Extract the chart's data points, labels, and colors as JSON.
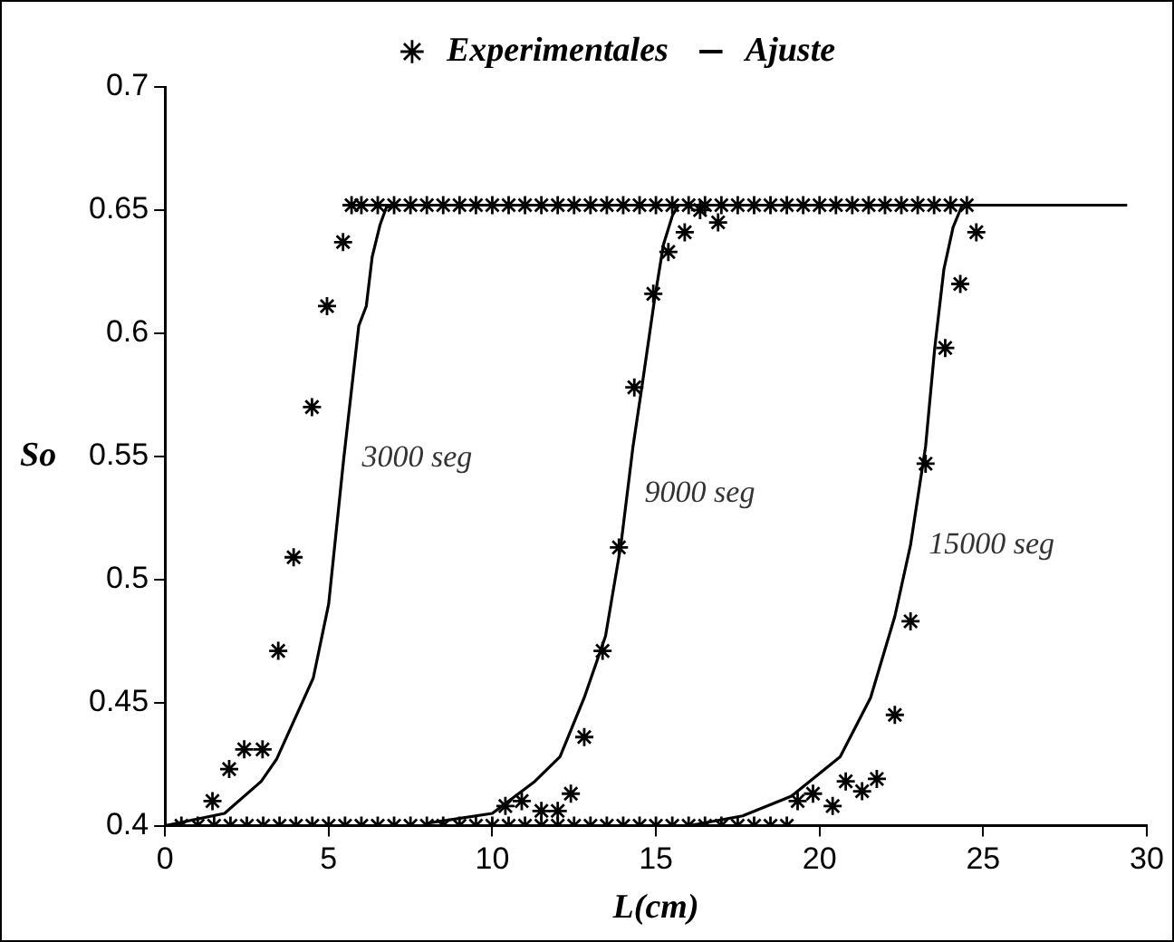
{
  "chart_data": {
    "type": "scatter",
    "xlabel": "L(cm)",
    "ylabel": "So",
    "xlim": [
      0,
      30
    ],
    "xticks": [
      0,
      5,
      10,
      15,
      20,
      25,
      30
    ],
    "ylim": [
      0.4,
      0.7
    ],
    "yticks": [
      0.4,
      0.45,
      0.5,
      0.55,
      0.6,
      0.65,
      0.7
    ],
    "legend": "top",
    "series": [
      {
        "name": "Experimentales",
        "marker": "cross",
        "color": "#000000",
        "x": [
          0.5,
          1,
          1.5,
          2,
          2.5,
          3,
          3.5,
          4,
          4.5,
          5,
          5.5,
          6,
          6.5,
          7,
          7.5,
          8,
          8.5,
          9,
          9.5,
          10,
          10.5,
          11,
          11.5,
          12,
          12.5,
          13,
          13.5,
          14,
          14.5,
          15,
          15.5,
          16,
          16.5,
          17,
          17.5,
          18,
          18.5,
          19,
          1.45,
          1.96,
          2.42,
          2.98,
          3.46,
          3.93,
          4.49,
          4.95,
          5.44,
          5.7,
          6,
          6.5,
          7,
          7.5,
          8,
          8.5,
          9,
          9.5,
          10,
          10.5,
          11,
          11.5,
          12,
          12.5,
          13,
          13.5,
          14,
          14.5,
          15,
          15.5,
          16,
          16.5,
          17,
          17.5,
          18,
          18.5,
          19,
          19.5,
          20,
          20.5,
          21,
          21.5,
          22,
          22.5,
          23,
          23.5,
          24,
          24.5,
          10.4,
          10.9,
          11.5,
          12,
          12.4,
          12.81,
          13.37,
          13.87,
          14.34,
          14.92,
          15.38,
          15.88,
          16.35,
          16.9,
          19.33,
          19.8,
          20.4,
          20.8,
          21.3,
          21.75,
          22.3,
          22.78,
          23.24,
          23.84,
          24.3,
          24.79
        ],
        "values": [
          0.4,
          0.4,
          0.4,
          0.4,
          0.4,
          0.4,
          0.4,
          0.4,
          0.4,
          0.4,
          0.4,
          0.4,
          0.4,
          0.4,
          0.4,
          0.4,
          0.4,
          0.4,
          0.4,
          0.4,
          0.4,
          0.4,
          0.4,
          0.4,
          0.4,
          0.4,
          0.4,
          0.4,
          0.4,
          0.4,
          0.4,
          0.4,
          0.4,
          0.4,
          0.4,
          0.4,
          0.4,
          0.4,
          0.41,
          0.423,
          0.431,
          0.431,
          0.471,
          0.509,
          0.57,
          0.611,
          0.637,
          0.652,
          0.652,
          0.652,
          0.652,
          0.652,
          0.652,
          0.652,
          0.652,
          0.652,
          0.652,
          0.652,
          0.652,
          0.652,
          0.652,
          0.652,
          0.652,
          0.652,
          0.652,
          0.652,
          0.652,
          0.652,
          0.652,
          0.652,
          0.652,
          0.652,
          0.652,
          0.652,
          0.652,
          0.652,
          0.652,
          0.652,
          0.652,
          0.652,
          0.652,
          0.652,
          0.652,
          0.652,
          0.652,
          0.652,
          0.408,
          0.41,
          0.406,
          0.406,
          0.413,
          0.436,
          0.471,
          0.513,
          0.578,
          0.616,
          0.633,
          0.641,
          0.65,
          0.645,
          0.41,
          0.413,
          0.408,
          0.418,
          0.414,
          0.419,
          0.445,
          0.483,
          0.547,
          0.594,
          0.62,
          0.641
        ]
      },
      {
        "name": "Ajuste",
        "type": "line",
        "marker": "none",
        "color": "#000000",
        "x": [
          0,
          1.82,
          2.94,
          3.41,
          4.53,
          5,
          5.46,
          5.92,
          6.15,
          6.33,
          6.57,
          6.76,
          7
        ],
        "values": [
          0.4,
          0.405,
          0.418,
          0.427,
          0.46,
          0.49,
          0.549,
          0.603,
          0.611,
          0.631,
          0.644,
          0.651,
          0.652
        ]
      },
      {
        "type": "line",
        "marker": "none",
        "color": "#000000",
        "x": [
          8,
          10,
          11.3,
          12.07,
          12.81,
          13.46,
          13.93,
          14.3,
          14.58,
          14.95,
          15.23,
          15.51,
          15.7,
          16
        ],
        "values": [
          0.401,
          0.405,
          0.418,
          0.428,
          0.452,
          0.477,
          0.514,
          0.554,
          0.579,
          0.613,
          0.636,
          0.648,
          0.652,
          0.652
        ]
      },
      {
        "type": "line",
        "marker": "none",
        "color": "#000000",
        "x": [
          16,
          17.65,
          19.14,
          20.63,
          21.56,
          22.3,
          22.78,
          23.24,
          23.52,
          23.8,
          24.08,
          24.36,
          29.4
        ],
        "values": [
          0.4,
          0.404,
          0.412,
          0.428,
          0.452,
          0.485,
          0.514,
          0.554,
          0.594,
          0.626,
          0.643,
          0.652,
          0.652
        ]
      }
    ],
    "annotations": [
      {
        "text": "3000 seg",
        "x": 5.46,
        "y": 0.549
      },
      {
        "text": "9000 seg",
        "x": 14.1,
        "y": 0.535
      },
      {
        "text": "15000 seg",
        "x": 22.78,
        "y": 0.514
      }
    ]
  }
}
